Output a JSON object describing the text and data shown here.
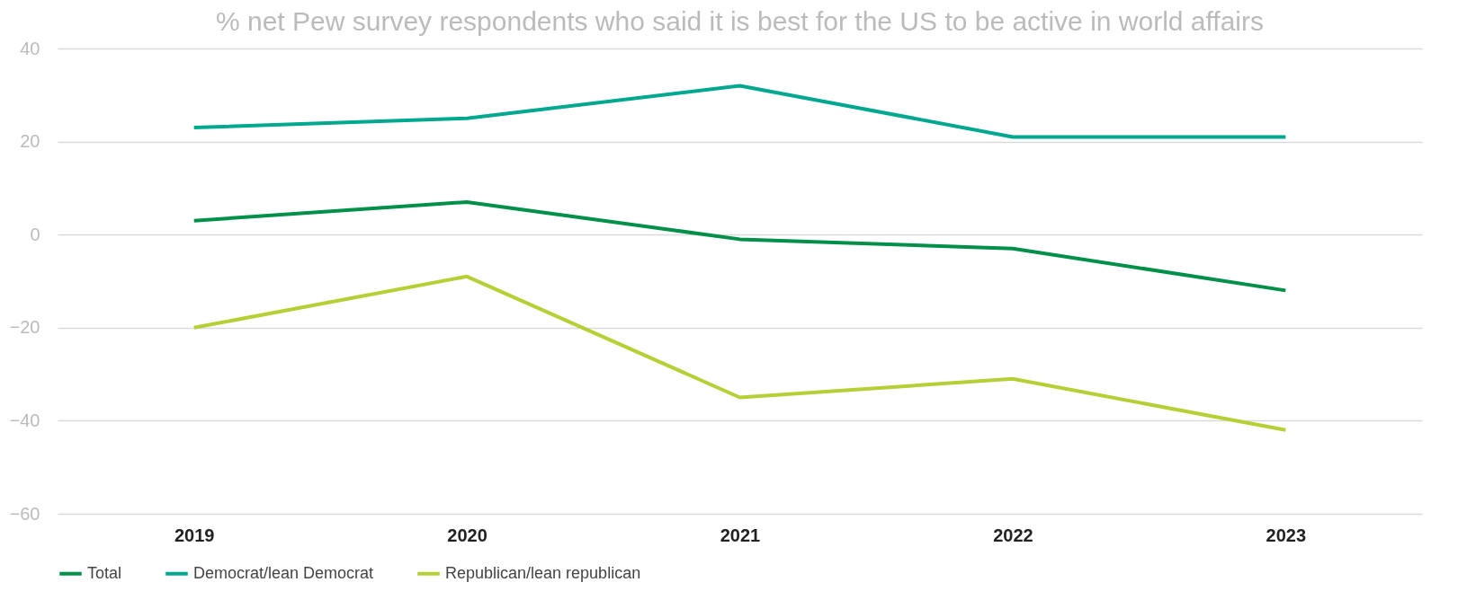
{
  "chart_data": {
    "type": "line",
    "title": "% net Pew survey respondents who said it is best for the US to be active in world affairs",
    "categories": [
      "2019",
      "2020",
      "2021",
      "2022",
      "2023"
    ],
    "series": [
      {
        "name": "Total",
        "color": "#00904a",
        "values": [
          3,
          7,
          -1,
          -3,
          -12
        ]
      },
      {
        "name": "Democrat/lean Democrat",
        "color": "#00a88f",
        "values": [
          23,
          25,
          32,
          21,
          21
        ]
      },
      {
        "name": "Republican/lean republican",
        "color": "#b5cf35",
        "values": [
          -20,
          -9,
          -35,
          -31,
          -42
        ]
      }
    ],
    "ylim": [
      -60,
      40
    ],
    "yticks": [
      -60,
      -40,
      -20,
      0,
      20,
      40
    ],
    "grid": "y",
    "legend": "bottom",
    "marker": "none",
    "line_style": "solid"
  }
}
